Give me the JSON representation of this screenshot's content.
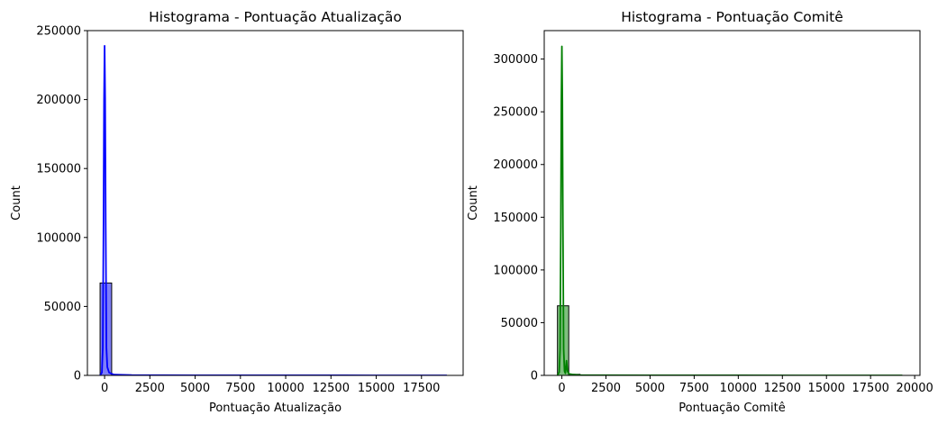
{
  "chart_data": [
    {
      "type": "bar",
      "title": "Histograma - Pontuação Atualização",
      "xlabel": "Pontuação Atualização",
      "ylabel": "Count",
      "xlim": [
        -950,
        19800
      ],
      "ylim": [
        0,
        250000
      ],
      "xticks": [
        0,
        2500,
        5000,
        7500,
        10000,
        12500,
        15000,
        17500
      ],
      "xtick_labels": [
        "0",
        "2500",
        "5000",
        "7500",
        "10000",
        "12500",
        "15000",
        "17500"
      ],
      "yticks": [
        0,
        50000,
        100000,
        150000,
        200000,
        250000
      ],
      "ytick_labels": [
        "0",
        "50000",
        "100000",
        "150000",
        "200000",
        "250000"
      ],
      "bin_edges": [
        -250,
        390
      ],
      "counts": [
        67000
      ],
      "kde": {
        "x": [
          -250,
          -150,
          -100,
          -60,
          -30,
          0,
          30,
          60,
          100,
          150,
          250,
          500,
          1500,
          5000,
          10000,
          15000,
          18900
        ],
        "y": [
          0,
          2000,
          20000,
          110000,
          200000,
          239000,
          200000,
          110000,
          20000,
          6000,
          2000,
          600,
          200,
          80,
          40,
          20,
          0
        ]
      },
      "color": "#0000ff",
      "bar_fill": "#7f7ff7",
      "grid": false
    },
    {
      "type": "bar",
      "title": "Histograma - Pontuação Comitê",
      "xlabel": "Pontuação Comitê",
      "ylabel": "Count",
      "xlim": [
        -1000,
        20300
      ],
      "ylim": [
        0,
        327000
      ],
      "xticks": [
        0,
        2500,
        5000,
        7500,
        10000,
        12500,
        15000,
        17500,
        20000
      ],
      "xtick_labels": [
        "0",
        "2500",
        "5000",
        "7500",
        "10000",
        "12500",
        "15000",
        "17500",
        "20000"
      ],
      "yticks": [
        0,
        50000,
        100000,
        150000,
        200000,
        250000,
        300000
      ],
      "ytick_labels": [
        "0",
        "50000",
        "100000",
        "150000",
        "200000",
        "250000",
        "300000"
      ],
      "bin_edges": [
        -250,
        390,
        1030
      ],
      "counts": [
        66000,
        1000
      ],
      "kde": {
        "x": [
          -250,
          -150,
          -100,
          -60,
          -30,
          0,
          30,
          60,
          100,
          150,
          200,
          260,
          320,
          400,
          600,
          1000,
          2000,
          5000,
          10000,
          15000,
          19300
        ],
        "y": [
          0,
          3000,
          25000,
          140000,
          260000,
          312000,
          260000,
          140000,
          25000,
          4000,
          2000,
          14000,
          4000,
          1500,
          800,
          300,
          150,
          60,
          30,
          15,
          0
        ]
      },
      "color": "#008000",
      "bar_fill": "#7fbf7f",
      "grid": false
    }
  ]
}
